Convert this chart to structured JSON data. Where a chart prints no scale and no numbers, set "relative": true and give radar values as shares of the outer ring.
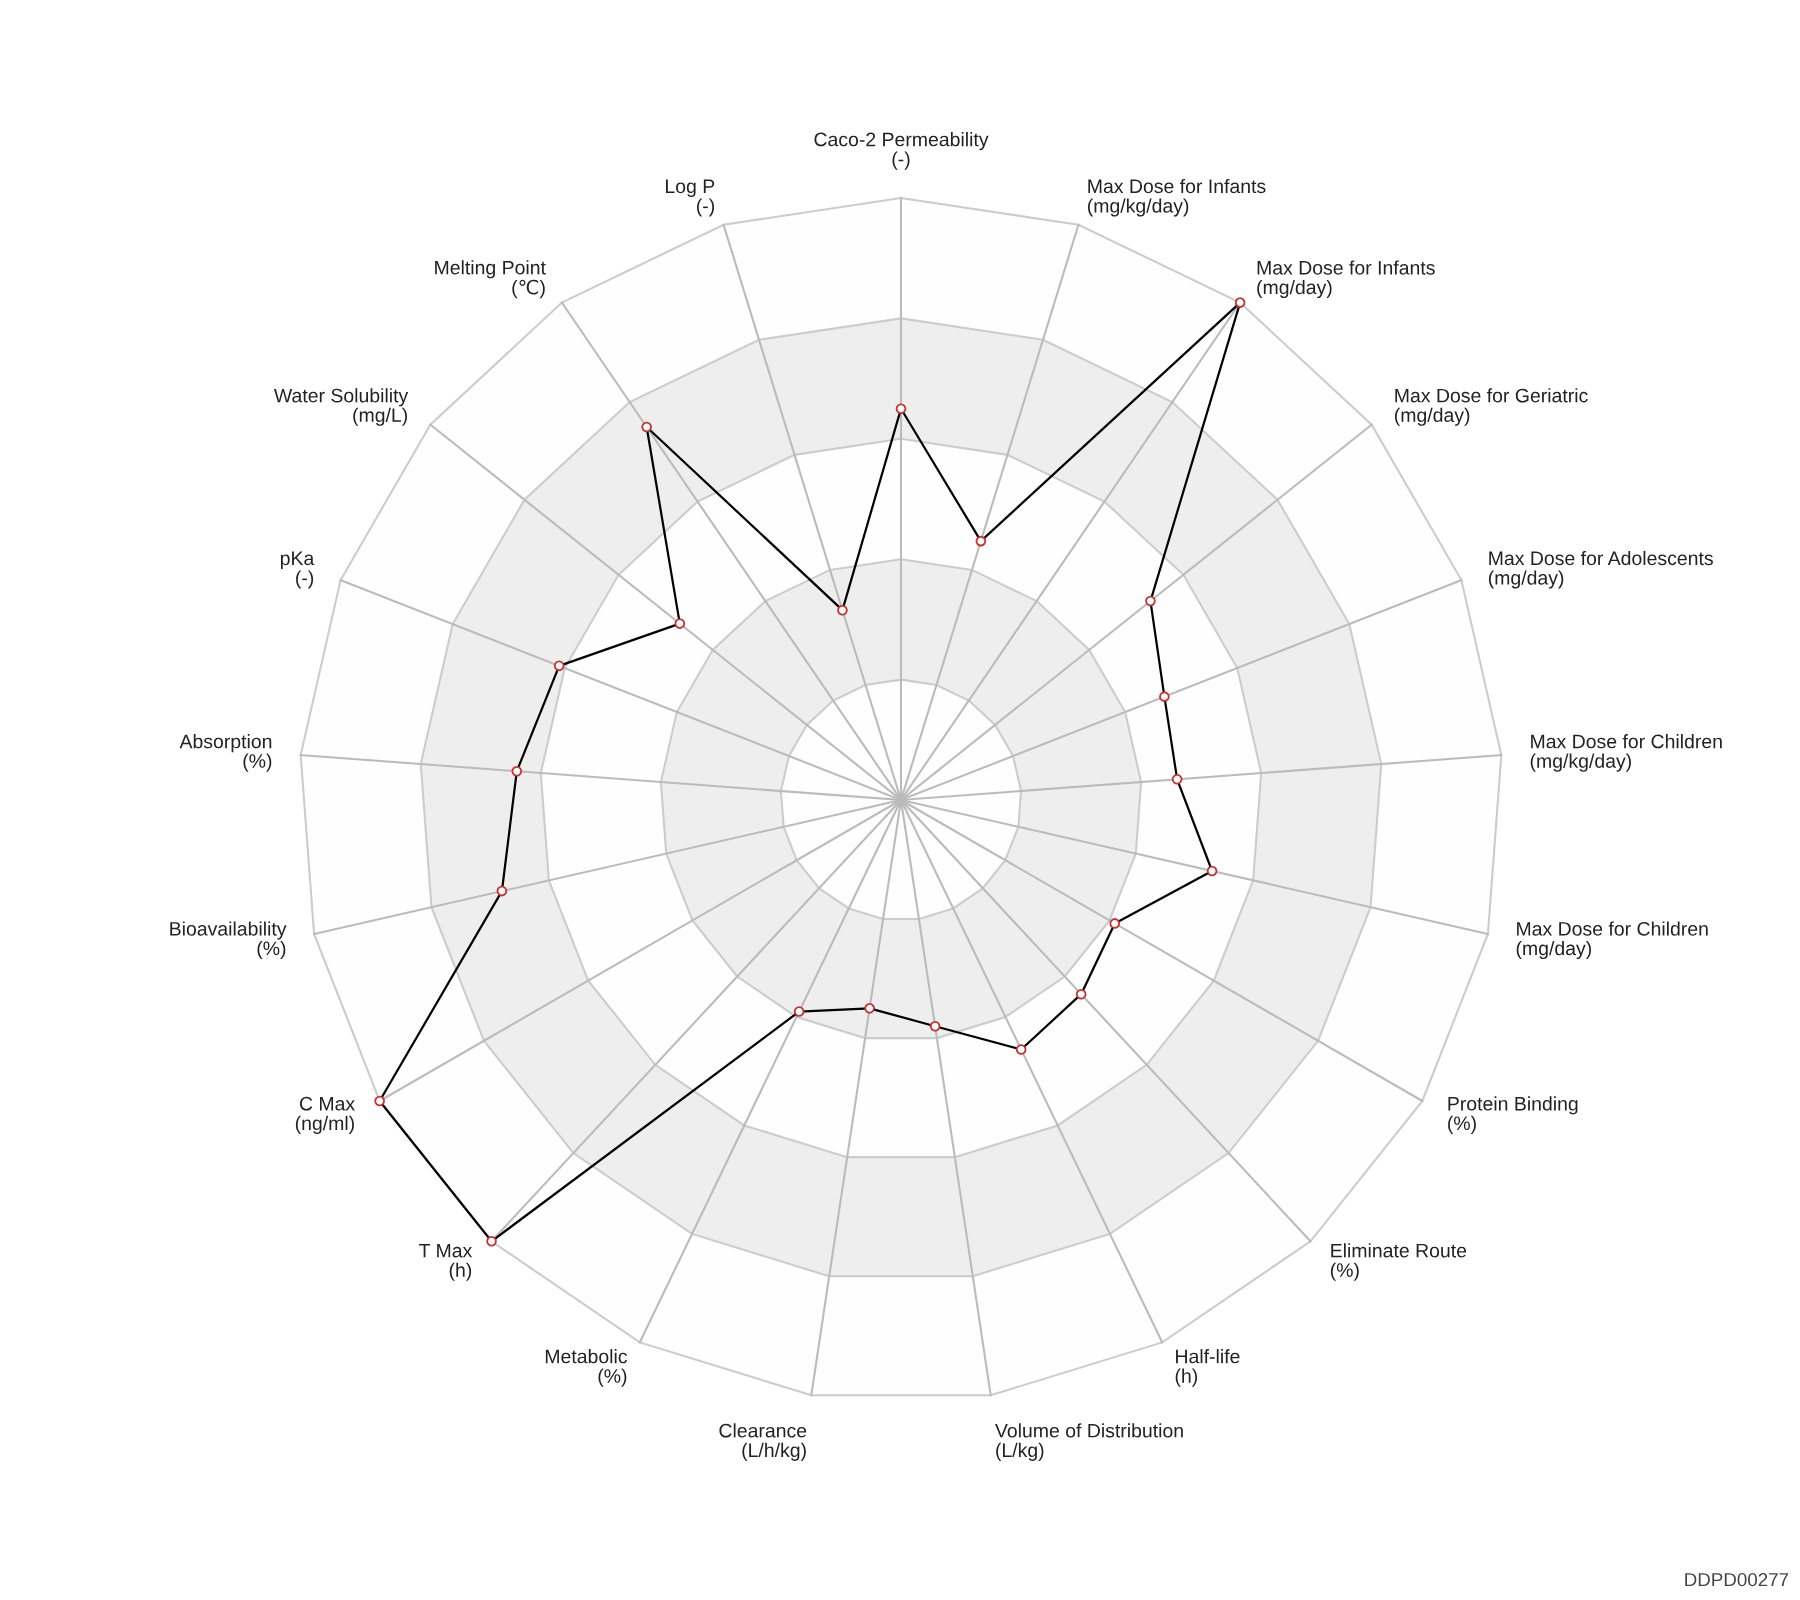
{
  "chart_data": {
    "type": "radar",
    "relative": true,
    "categories": [
      "Caco-2 Permeability\n(-)",
      "Max Dose for Infants\n(mg/kg/day)",
      "Max Dose for Infants\n(mg/day)",
      "Max Dose for Geriatric\n(mg/day)",
      "Max Dose for Adolescents\n(mg/day)",
      "Max Dose for Children\n(mg/kg/day)",
      "Max Dose for Children\n(mg/day)",
      "Protein Binding\n(%)",
      "Eliminate Route\n(%)",
      "Half-life\n(h)",
      "Volume of Distribution\n(L/kg)",
      "Clearance\n(L/h/kg)",
      "Metabolic\n(%)",
      "T Max\n(h)",
      "C Max\n(ng/ml)",
      "Bioavailability\n(%)",
      "Absorption\n(%)",
      "pKa\n(-)",
      "Water Solubility\n(mg/L)",
      "Melting Point\n(℃)",
      "Log P\n(-)"
    ],
    "series": [
      {
        "color": "#000000",
        "values": [
          0.65,
          0.45,
          1.0,
          0.53,
          0.47,
          0.46,
          0.53,
          0.41,
          0.44,
          0.46,
          0.38,
          0.35,
          0.39,
          1.0,
          1.0,
          0.68,
          0.64,
          0.61,
          0.47,
          0.75,
          0.33
        ]
      }
    ],
    "marker": "circle",
    "line_style": "solid",
    "grid": true,
    "annotations": [
      "DDPD00277"
    ]
  }
}
